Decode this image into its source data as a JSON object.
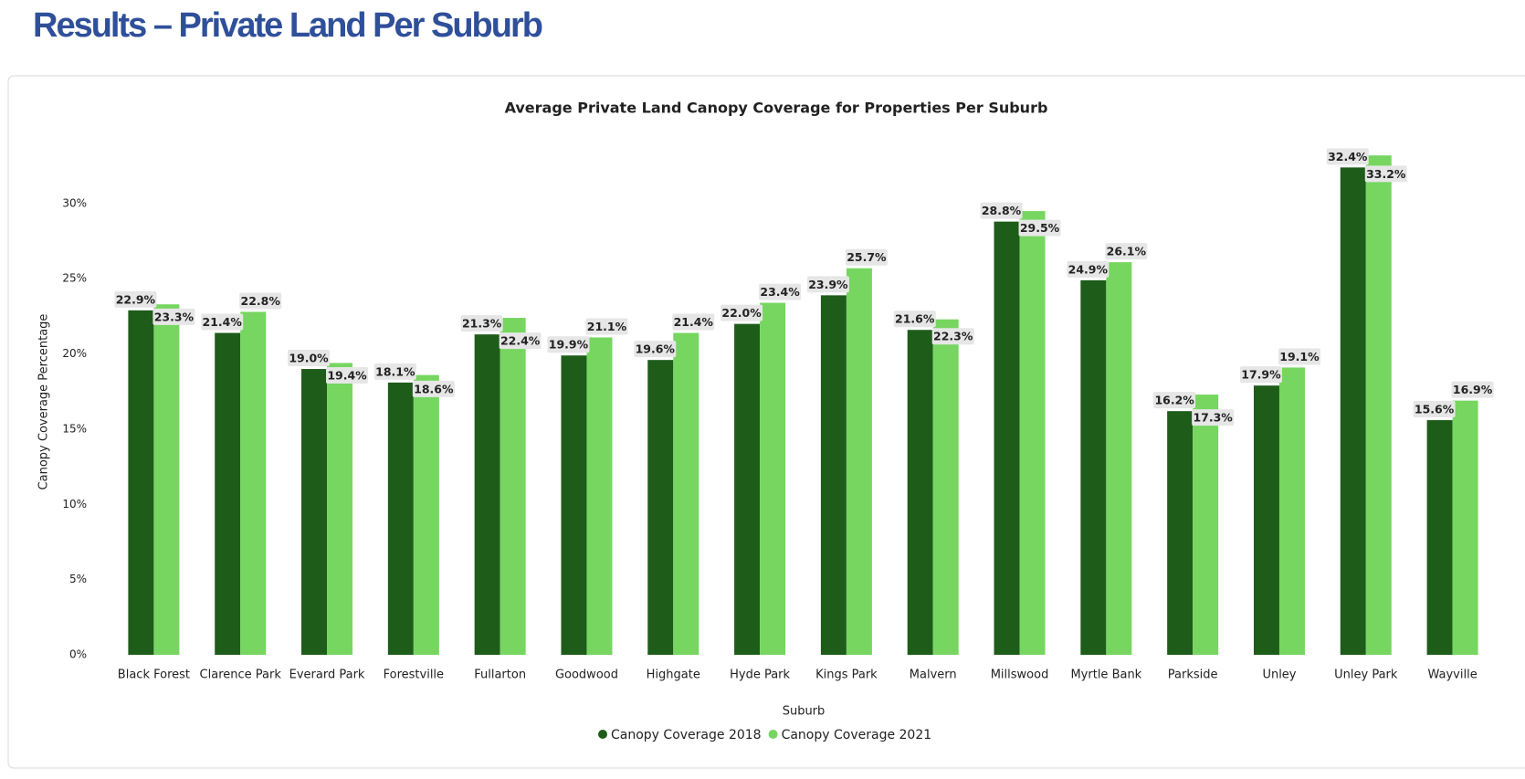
{
  "heading": "Results – Private Land Per Suburb",
  "chart_data": {
    "type": "bar",
    "title": "Average Private Land Canopy Coverage for Properties Per Suburb",
    "x_label": "Suburb",
    "y_label": "Canopy Coverage Percentage",
    "categories": [
      "Black Forest",
      "Clarence Park",
      "Everard Park",
      "Forestville",
      "Fullarton",
      "Goodwood",
      "Highgate",
      "Hyde Park",
      "Kings Park",
      "Malvern",
      "Millswood",
      "Myrtle Bank",
      "Parkside",
      "Unley",
      "Unley Park",
      "Wayville"
    ],
    "series": [
      {
        "name": "Canopy Coverage 2018",
        "color": "#1e5c1a",
        "values": [
          22.9,
          21.4,
          19.0,
          18.1,
          21.3,
          19.9,
          19.6,
          22.0,
          23.9,
          21.6,
          28.8,
          24.9,
          16.2,
          17.9,
          32.4,
          15.6
        ],
        "value_labels": [
          "22.9%",
          "21.4%",
          "19.0%",
          "18.1%",
          "21.3%",
          "19.9%",
          "19.6%",
          "22.0%",
          "23.9%",
          "21.6%",
          "28.8%",
          "24.9%",
          "16.2%",
          "17.9%",
          "32.4%",
          "15.6%"
        ]
      },
      {
        "name": "Canopy Coverage 2021",
        "color": "#76d660",
        "values": [
          23.3,
          22.8,
          19.4,
          18.6,
          22.4,
          21.1,
          21.4,
          23.4,
          25.7,
          22.3,
          29.5,
          26.1,
          17.3,
          19.1,
          33.2,
          16.9
        ],
        "value_labels": [
          "23.3%",
          "22.8%",
          "19.4%",
          "18.6%",
          "22.4%",
          "21.1%",
          "21.4%",
          "23.4%",
          "25.7%",
          "22.3%",
          "29.5%",
          "26.1%",
          "17.3%",
          "19.1%",
          "33.2%",
          "16.9%"
        ]
      }
    ],
    "ylim": [
      0,
      34
    ],
    "yticks": [
      {
        "value": 0,
        "label": "0%"
      },
      {
        "value": 5,
        "label": "5%"
      },
      {
        "value": 10,
        "label": "10%"
      },
      {
        "value": 15,
        "label": "15%"
      },
      {
        "value": 20,
        "label": "20%"
      },
      {
        "value": 25,
        "label": "25%"
      },
      {
        "value": 30,
        "label": "30%"
      }
    ],
    "grid": false,
    "legend": "bottom"
  }
}
